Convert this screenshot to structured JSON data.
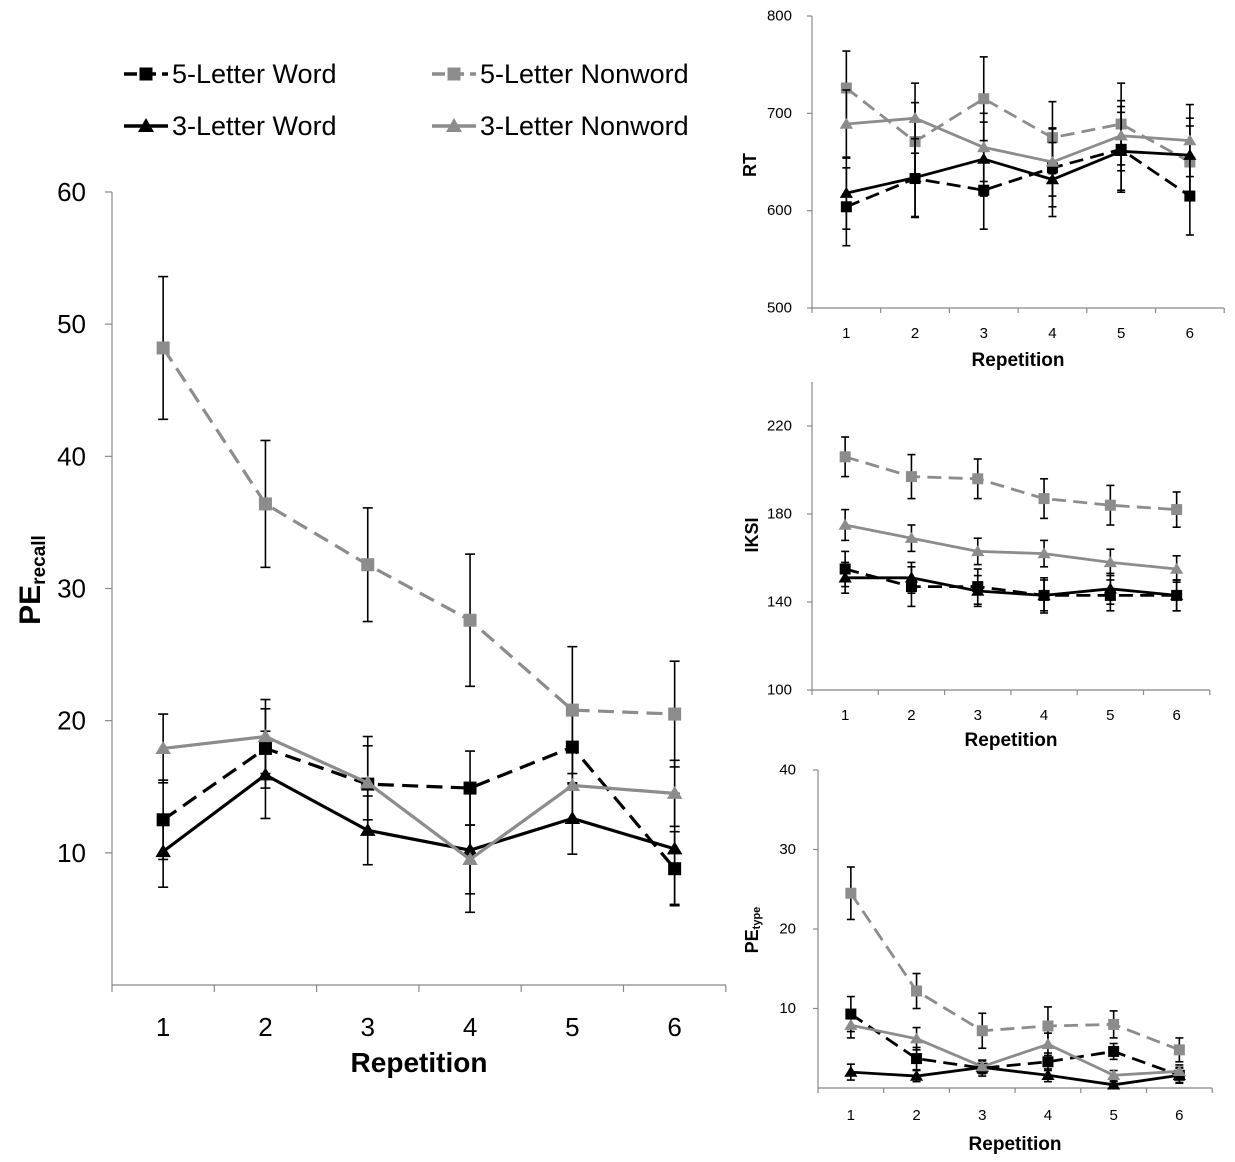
{
  "legend": [
    {
      "label": "5-Letter Word",
      "color": "#000000",
      "dash": true,
      "marker": "square"
    },
    {
      "label": "5-Letter Nonword",
      "color": "#8c8c8c",
      "dash": true,
      "marker": "square"
    },
    {
      "label": "3-Letter Word",
      "color": "#000000",
      "dash": false,
      "marker": "triangle"
    },
    {
      "label": "3-Letter Nonword",
      "color": "#8c8c8c",
      "dash": false,
      "marker": "triangle"
    }
  ],
  "chart_data": [
    {
      "id": "pe-recall",
      "type": "line",
      "ylabel": "PE",
      "ylabel_sub": "recall",
      "xlabel": "Repetition",
      "categories": [
        "1",
        "2",
        "3",
        "4",
        "5",
        "6"
      ],
      "ylim": [
        0,
        60
      ],
      "yticks": [
        10,
        20,
        30,
        40,
        50,
        60
      ],
      "yticks_text": [
        "10",
        "20",
        "30",
        "40",
        "50",
        "60"
      ],
      "grid": false,
      "series": [
        {
          "name": "5-Letter Word",
          "values": [
            12.5,
            17.9,
            15.2,
            14.9,
            18.0,
            8.8
          ],
          "err": [
            3.0,
            3.0,
            3.6,
            2.8,
            2.8,
            2.8
          ]
        },
        {
          "name": "5-Letter Nonword",
          "values": [
            48.2,
            36.4,
            31.8,
            27.6,
            20.8,
            20.5
          ],
          "err": [
            5.4,
            4.8,
            4.3,
            5.0,
            4.8,
            4.0
          ]
        },
        {
          "name": "3-Letter Word",
          "values": [
            10.1,
            15.9,
            11.7,
            10.2,
            12.6,
            10.3
          ],
          "err": [
            2.7,
            3.3,
            2.6,
            4.7,
            2.7,
            4.2
          ]
        },
        {
          "name": "3-Letter Nonword",
          "values": [
            17.9,
            18.8,
            15.3,
            9.5,
            15.1,
            14.5
          ],
          "err": [
            2.6,
            2.8,
            2.8,
            2.6,
            2.7,
            2.5
          ]
        }
      ]
    },
    {
      "id": "rt",
      "type": "line",
      "ylabel": "RT",
      "ylabel_sub": "",
      "xlabel": "Repetition",
      "categories": [
        "1",
        "2",
        "3",
        "4",
        "5",
        "6"
      ],
      "ylim": [
        500,
        800
      ],
      "yticks": [
        500,
        600,
        700,
        800
      ],
      "yticks_text": [
        "500",
        "600",
        "700",
        "800"
      ],
      "grid": false,
      "series": [
        {
          "name": "5-Letter Word",
          "values": [
            604,
            633,
            621,
            644,
            663,
            615
          ],
          "err": [
            40,
            40,
            40,
            40,
            44,
            40
          ]
        },
        {
          "name": "5-Letter Nonword",
          "values": [
            726,
            671,
            715,
            675,
            689,
            650
          ],
          "err": [
            38,
            40,
            43,
            37,
            42,
            37
          ]
        },
        {
          "name": "3-Letter Word",
          "values": [
            618,
            634,
            653,
            632,
            661,
            657
          ],
          "err": [
            37,
            40,
            38,
            38,
            40,
            38
          ]
        },
        {
          "name": "3-Letter Nonword",
          "values": [
            689,
            695,
            665,
            650,
            677,
            672
          ],
          "err": [
            35,
            36,
            35,
            35,
            36,
            37
          ]
        }
      ]
    },
    {
      "id": "iksi",
      "type": "line",
      "ylabel": "IKSI",
      "ylabel_sub": "",
      "xlabel": "Repetition",
      "categories": [
        "1",
        "2",
        "3",
        "4",
        "5",
        "6"
      ],
      "ylim": [
        100,
        240
      ],
      "yticks": [
        100,
        140,
        180,
        220
      ],
      "yticks_text": [
        "100",
        "140",
        "180",
        "220"
      ],
      "grid": false,
      "series": [
        {
          "name": "5-Letter Word",
          "values": [
            155,
            147,
            147,
            143,
            143,
            143
          ],
          "err": [
            8,
            9,
            8,
            8,
            7,
            7
          ]
        },
        {
          "name": "5-Letter Nonword",
          "values": [
            206,
            197,
            196,
            187,
            184,
            182
          ],
          "err": [
            9,
            10,
            9,
            9,
            9,
            8
          ]
        },
        {
          "name": "3-Letter Word",
          "values": [
            151,
            151,
            145,
            143,
            146,
            143
          ],
          "err": [
            7,
            7,
            7,
            7,
            7,
            7
          ]
        },
        {
          "name": "3-Letter Nonword",
          "values": [
            175,
            169,
            163,
            162,
            158,
            155
          ],
          "err": [
            7,
            6,
            6,
            6,
            6,
            6
          ]
        }
      ]
    },
    {
      "id": "pe-type",
      "type": "line",
      "ylabel": "PE",
      "ylabel_sub": "type",
      "xlabel": "Repetition",
      "categories": [
        "1",
        "2",
        "3",
        "4",
        "5",
        "6"
      ],
      "ylim": [
        0,
        40
      ],
      "yticks": [
        10,
        20,
        30,
        40
      ],
      "yticks_text": [
        "10",
        "20",
        "30",
        "40"
      ],
      "grid": false,
      "series": [
        {
          "name": "5-Letter Word",
          "values": [
            9.3,
            3.7,
            2.5,
            3.3,
            4.6,
            1.6
          ],
          "err": [
            2.2,
            1.4,
            1.0,
            1.1,
            1.0,
            1.0
          ]
        },
        {
          "name": "5-Letter Nonword",
          "values": [
            24.5,
            12.2,
            7.2,
            7.8,
            8.0,
            4.8
          ],
          "err": [
            3.3,
            2.2,
            2.2,
            2.4,
            1.7,
            1.5
          ]
        },
        {
          "name": "3-Letter Word",
          "values": [
            2.0,
            1.5,
            2.6,
            1.6,
            0.4,
            1.6
          ],
          "err": [
            1.0,
            0.7,
            0.8,
            0.8,
            0.4,
            0.9
          ]
        },
        {
          "name": "3-Letter Nonword",
          "values": [
            7.9,
            6.2,
            2.7,
            5.5,
            1.6,
            2.1
          ],
          "err": [
            1.6,
            1.4,
            0.8,
            1.4,
            0.6,
            0.8
          ]
        }
      ]
    }
  ]
}
